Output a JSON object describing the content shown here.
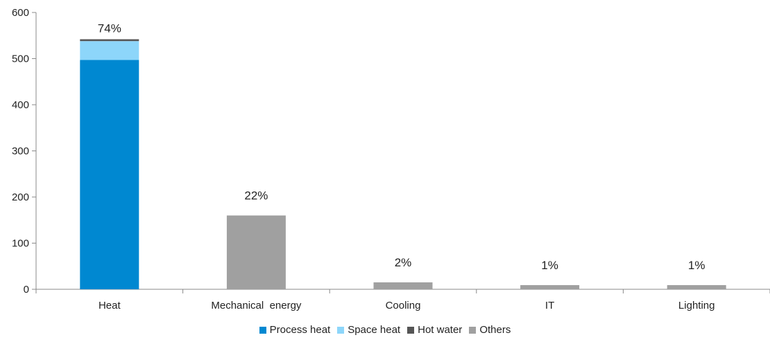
{
  "chart_data": {
    "type": "bar",
    "stacked": true,
    "categories": [
      "Heat",
      "Mechanical  energy",
      "Cooling",
      "IT",
      "Lighting"
    ],
    "series": [
      {
        "name": "Process heat",
        "color": "#0088d1",
        "values": [
          497,
          0,
          0,
          0,
          0
        ]
      },
      {
        "name": "Space heat",
        "color": "#8dd6fa",
        "values": [
          41,
          0,
          0,
          0,
          0
        ]
      },
      {
        "name": "Hot water",
        "color": "#555555",
        "values": [
          4,
          0,
          0,
          0,
          0
        ]
      },
      {
        "name": "Others",
        "color": "#a0a0a0",
        "values": [
          0,
          160,
          15,
          9,
          9
        ]
      }
    ],
    "data_labels": [
      "74%",
      "22%",
      "2%",
      "1%",
      "1%"
    ],
    "y_ticks": [
      0,
      100,
      200,
      300,
      400,
      500,
      600
    ],
    "ylim": [
      0,
      600
    ],
    "grid": false,
    "legend_position": "bottom"
  }
}
